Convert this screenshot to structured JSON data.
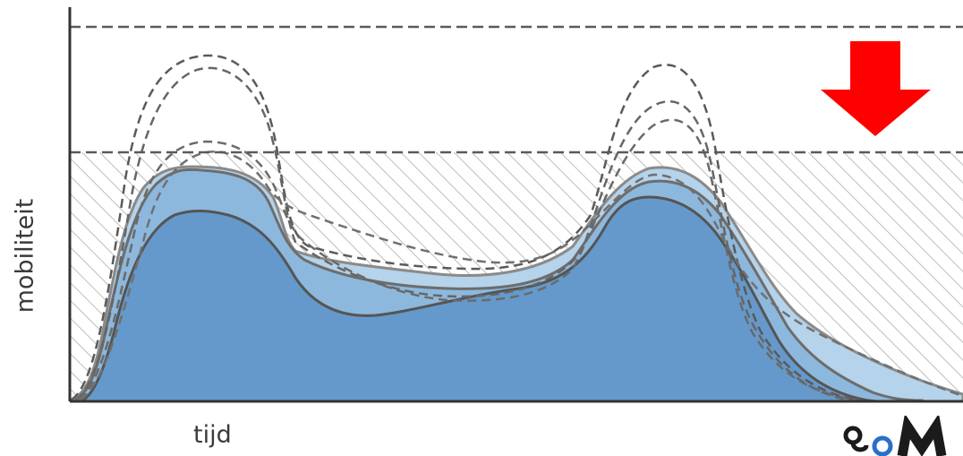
{
  "diagram": {
    "y_axis_label": "mobiliteit",
    "x_axis_label": "tijd",
    "description_level_lines": 2,
    "colors": {
      "area_dark": "#6599cb",
      "area_light": "#b5d3ea",
      "area_mid": "#8db8dd",
      "curve_outline": "#6d6d6d",
      "dashed_lines": "#5a5a5a",
      "hatch": "#bdbdbd",
      "arrow": "#ff0000",
      "logo_dark": "#1b1b1b",
      "logo_blue": "#2a6fc9"
    },
    "icons": {
      "arrow": "down-arrow-icon",
      "logo": "brand-logo-icon"
    }
  }
}
